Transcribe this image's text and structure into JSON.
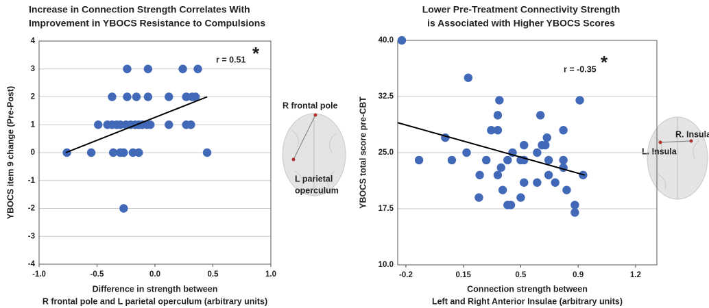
{
  "chart_data": [
    {
      "type": "scatter",
      "title": [
        "Increase in Connection Strength Correlates With",
        "Improvement in YBOCS Resistance to Compulsions"
      ],
      "x_label": [
        "Difference in strength between",
        "R frontal pole and L parietal operculum (arbitrary units)"
      ],
      "y_label": "YBOCS item 9 change (Pre-Post)",
      "annotations": [
        "r = 0.51",
        "*"
      ],
      "brain_labels": [
        "R frontal pole",
        [
          "L parietal",
          "operculum"
        ]
      ],
      "color": "#4169b8",
      "grid": true,
      "xlim": [
        -1.0,
        1.0
      ],
      "xticks": [
        {
          "value": -1.0,
          "label": "-1.0"
        },
        {
          "value": -0.5,
          "label": "-0.5"
        },
        {
          "value": 0.0,
          "label": "0.0"
        },
        {
          "value": 0.5,
          "label": "0.5"
        },
        {
          "value": 1.0,
          "label": "1.0"
        }
      ],
      "ylim": [
        -4,
        4
      ],
      "yticks": [
        -4,
        -3,
        -2,
        -1,
        0,
        1,
        2,
        3,
        4
      ],
      "x": [
        -0.24,
        -0.06,
        0.24,
        0.37,
        -0.37,
        -0.24,
        -0.16,
        -0.06,
        0.12,
        0.27,
        0.32,
        0.35,
        -0.49,
        -0.41,
        -0.37,
        -0.33,
        -0.3,
        -0.25,
        -0.21,
        -0.17,
        -0.14,
        -0.11,
        -0.07,
        -0.04,
        0.12,
        0.27,
        0.31,
        -0.76,
        -0.55,
        -0.36,
        -0.3,
        -0.27,
        -0.19,
        -0.14,
        0.45,
        -0.27
      ],
      "values": [
        3,
        3,
        3,
        3,
        2,
        2,
        2,
        2,
        2,
        2,
        2,
        2,
        1,
        1,
        1,
        1,
        1,
        1,
        1,
        1,
        1,
        1,
        1,
        1,
        1,
        1,
        1,
        0,
        0,
        0,
        0,
        0,
        0,
        0,
        0,
        -2
      ],
      "trendline": {
        "x": [
          -0.77,
          0.45
        ],
        "y": [
          0,
          2
        ]
      }
    },
    {
      "type": "scatter",
      "title": [
        "Lower Pre-Treatment Connectivity Strength",
        "is Associated with Higher YBOCS Scores"
      ],
      "x_label": [
        "Connection strength between",
        "Left and Right Anterior Insulae (arbitrary units)"
      ],
      "y_label": "YBOCS total score pre-CBT",
      "annotations": [
        "r = -0.35",
        "*"
      ],
      "brain_labels": [
        "R. Insula",
        "L. Insula"
      ],
      "color": "#4169b8",
      "grid": true,
      "xlim": [
        -0.25,
        1.33
      ],
      "xticks": [
        -0.2,
        0.15,
        0.5,
        {
          "value": 0.85,
          "label": "0.9"
        },
        1.2
      ],
      "ylim": [
        10,
        40
      ],
      "yticks": [
        {
          "value": 10,
          "label": "10.0"
        },
        17.5,
        {
          "value": 25,
          "label": "25.0"
        },
        32.5,
        {
          "value": 40,
          "label": "40.0"
        }
      ],
      "x": [
        -0.225,
        -0.12,
        0.04,
        0.08,
        0.18,
        0.17,
        0.245,
        0.25,
        0.29,
        0.32,
        0.36,
        0.36,
        0.37,
        0.36,
        0.38,
        0.39,
        0.42,
        0.42,
        0.44,
        0.45,
        0.5,
        0.5,
        0.52,
        0.52,
        0.52,
        0.6,
        0.62,
        0.63,
        0.65,
        0.6,
        0.66,
        0.67,
        0.67,
        0.71,
        0.76,
        0.76,
        0.76,
        0.78,
        0.83,
        0.83,
        0.86,
        0.88
      ],
      "values": [
        40,
        24,
        27,
        24,
        35,
        25,
        19,
        22,
        24,
        28,
        28,
        30,
        32,
        22,
        23,
        20,
        24,
        18,
        18,
        25,
        24,
        19,
        24,
        26,
        21,
        25,
        30,
        26,
        26,
        21,
        27,
        24,
        22,
        21,
        28,
        24,
        23,
        20,
        18,
        17,
        32,
        22
      ],
      "trendline": {
        "x": [
          -0.25,
          0.89
        ],
        "y": [
          29,
          22
        ]
      }
    }
  ]
}
